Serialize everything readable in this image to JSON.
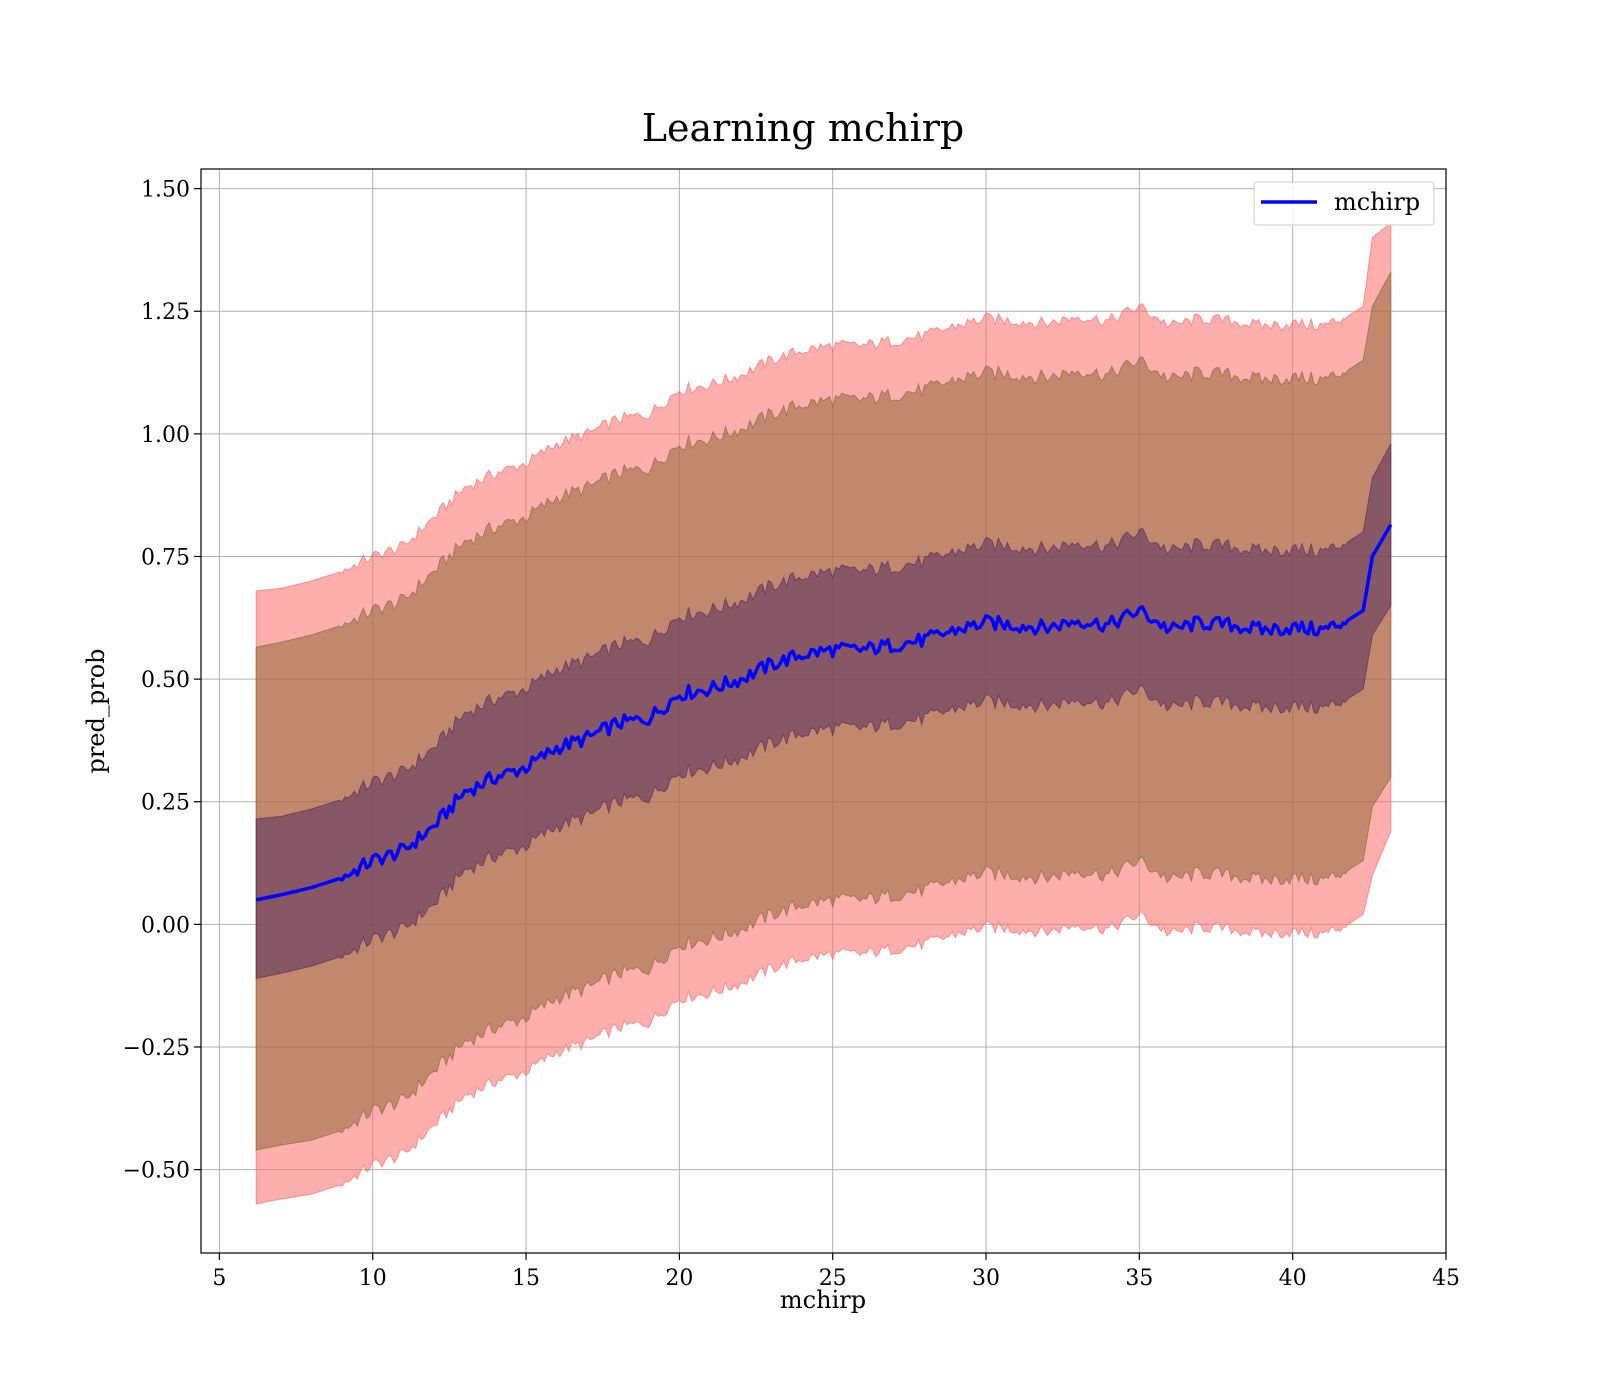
{
  "chart_data": {
    "type": "line",
    "title": "Learning mchirp",
    "xlabel": "mchirp",
    "ylabel": "pred_prob",
    "xlim": [
      4.4,
      45
    ],
    "ylim": [
      -0.67,
      1.54
    ],
    "xticks": [
      5,
      10,
      15,
      20,
      25,
      30,
      35,
      40,
      45
    ],
    "yticks": [
      -0.5,
      -0.25,
      0.0,
      0.25,
      0.5,
      0.75,
      1.0,
      1.25,
      1.5
    ],
    "xtick_labels": [
      "5",
      "10",
      "15",
      "20",
      "25",
      "30",
      "35",
      "40",
      "45"
    ],
    "ytick_labels": [
      "−0.50",
      "−0.25",
      "0.00",
      "0.25",
      "0.50",
      "0.75",
      "1.00",
      "1.25",
      "1.50"
    ],
    "grid": true,
    "legend": {
      "position": "top-right",
      "entries": [
        "mchirp"
      ]
    },
    "colors": {
      "line": "#0000ff",
      "band_outer": "#ff6b6b",
      "band_middle": "#8f6a3a",
      "band_inner": "#5a2f5e"
    },
    "x": [
      6.2,
      7,
      8,
      9,
      10,
      11,
      12,
      13,
      14,
      15,
      16,
      17,
      18,
      19,
      20,
      21,
      22,
      23,
      24,
      25,
      26,
      27,
      28,
      29,
      30,
      31,
      32,
      33,
      34,
      35,
      36,
      37,
      38,
      39,
      40,
      41,
      41.8,
      42.3,
      42.6,
      43.2
    ],
    "series": [
      {
        "name": "mchirp",
        "values": [
          0.05,
          0.06,
          0.075,
          0.095,
          0.13,
          0.15,
          0.2,
          0.27,
          0.3,
          0.32,
          0.36,
          0.38,
          0.41,
          0.42,
          0.47,
          0.48,
          0.5,
          0.53,
          0.55,
          0.56,
          0.56,
          0.57,
          0.58,
          0.6,
          0.615,
          0.61,
          0.605,
          0.62,
          0.61,
          0.64,
          0.6,
          0.615,
          0.61,
          0.6,
          0.605,
          0.6,
          0.62,
          0.64,
          0.75,
          0.815
        ]
      }
    ],
    "bands": [
      {
        "level": "outer",
        "lower": [
          -0.57,
          -0.56,
          -0.55,
          -0.53,
          -0.49,
          -0.47,
          -0.41,
          -0.35,
          -0.32,
          -0.3,
          -0.26,
          -0.24,
          -0.21,
          -0.2,
          -0.15,
          -0.14,
          -0.12,
          -0.09,
          -0.07,
          -0.06,
          -0.06,
          -0.05,
          -0.04,
          -0.02,
          -0.005,
          -0.01,
          -0.015,
          0.0,
          -0.01,
          0.02,
          -0.02,
          -0.005,
          -0.01,
          -0.02,
          -0.015,
          -0.02,
          0.0,
          0.02,
          0.1,
          0.19
        ],
        "upper": [
          0.68,
          0.685,
          0.7,
          0.72,
          0.75,
          0.77,
          0.83,
          0.89,
          0.92,
          0.94,
          0.98,
          1.0,
          1.03,
          1.04,
          1.09,
          1.1,
          1.12,
          1.15,
          1.17,
          1.18,
          1.18,
          1.19,
          1.2,
          1.22,
          1.235,
          1.23,
          1.225,
          1.24,
          1.23,
          1.26,
          1.22,
          1.235,
          1.23,
          1.22,
          1.225,
          1.22,
          1.24,
          1.26,
          1.4,
          1.43
        ]
      },
      {
        "level": "middle",
        "lower": [
          -0.46,
          -0.45,
          -0.44,
          -0.42,
          -0.38,
          -0.36,
          -0.3,
          -0.24,
          -0.21,
          -0.19,
          -0.15,
          -0.13,
          -0.1,
          -0.09,
          -0.04,
          -0.03,
          -0.01,
          0.02,
          0.04,
          0.05,
          0.05,
          0.06,
          0.07,
          0.09,
          0.105,
          0.1,
          0.095,
          0.11,
          0.1,
          0.13,
          0.09,
          0.105,
          0.1,
          0.09,
          0.095,
          0.09,
          0.11,
          0.13,
          0.24,
          0.3
        ],
        "upper": [
          0.565,
          0.575,
          0.59,
          0.61,
          0.64,
          0.66,
          0.72,
          0.78,
          0.81,
          0.83,
          0.87,
          0.89,
          0.92,
          0.93,
          0.98,
          0.99,
          1.01,
          1.04,
          1.06,
          1.07,
          1.07,
          1.08,
          1.09,
          1.11,
          1.125,
          1.12,
          1.115,
          1.13,
          1.12,
          1.15,
          1.11,
          1.125,
          1.12,
          1.11,
          1.115,
          1.11,
          1.13,
          1.15,
          1.26,
          1.33
        ]
      },
      {
        "level": "inner",
        "lower": [
          -0.11,
          -0.1,
          -0.085,
          -0.065,
          -0.03,
          -0.01,
          0.04,
          0.11,
          0.14,
          0.16,
          0.2,
          0.22,
          0.25,
          0.26,
          0.31,
          0.32,
          0.34,
          0.37,
          0.39,
          0.4,
          0.4,
          0.41,
          0.42,
          0.44,
          0.455,
          0.45,
          0.445,
          0.46,
          0.45,
          0.48,
          0.44,
          0.455,
          0.45,
          0.44,
          0.445,
          0.44,
          0.46,
          0.48,
          0.59,
          0.65
        ],
        "upper": [
          0.215,
          0.22,
          0.235,
          0.255,
          0.29,
          0.31,
          0.36,
          0.43,
          0.46,
          0.48,
          0.52,
          0.54,
          0.57,
          0.58,
          0.63,
          0.64,
          0.66,
          0.69,
          0.71,
          0.72,
          0.72,
          0.73,
          0.74,
          0.76,
          0.775,
          0.77,
          0.765,
          0.78,
          0.77,
          0.8,
          0.76,
          0.775,
          0.77,
          0.76,
          0.765,
          0.76,
          0.78,
          0.8,
          0.91,
          0.98
        ]
      }
    ]
  }
}
